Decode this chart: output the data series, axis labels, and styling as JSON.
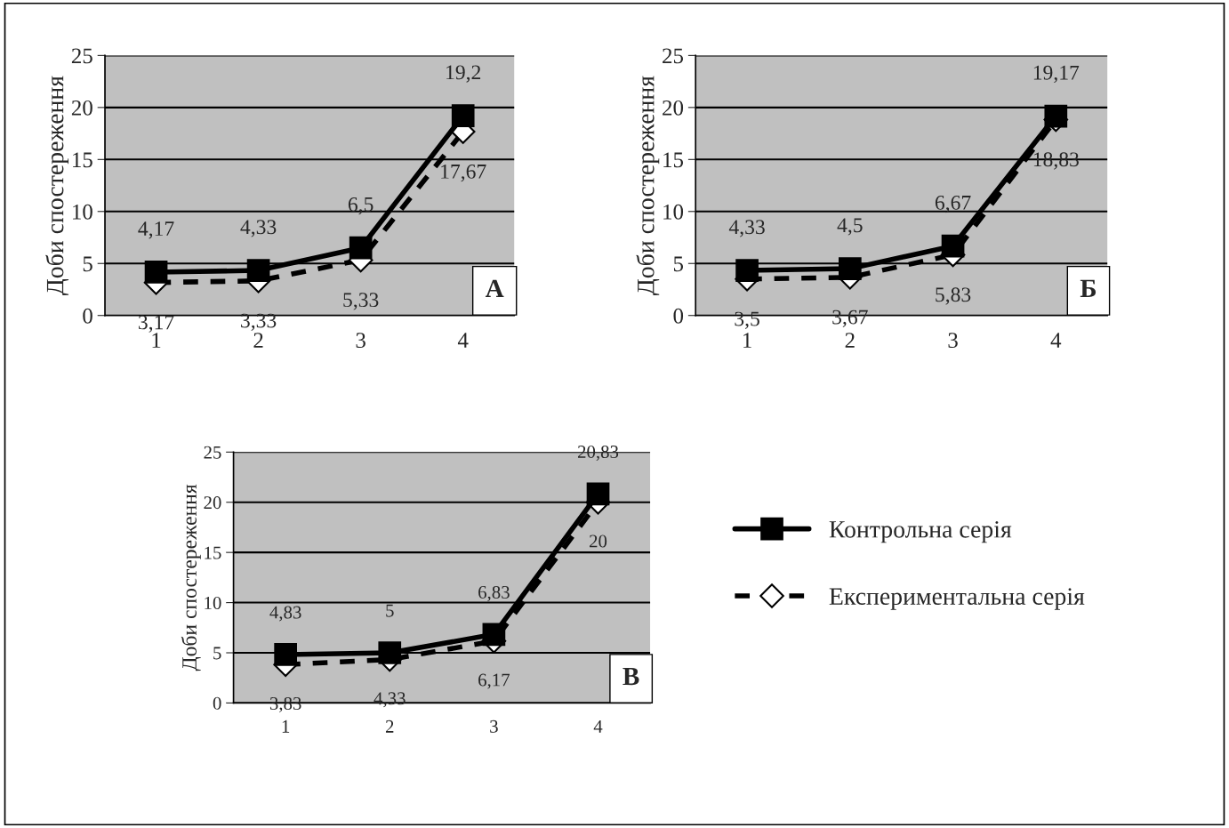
{
  "chart_data": [
    {
      "type": "line",
      "ylabel": "Доби спостереження",
      "categories": [
        "1",
        "2",
        "3",
        "4"
      ],
      "ylim": [
        0,
        25
      ],
      "yticks": [
        0,
        5,
        10,
        15,
        20,
        25
      ],
      "grid": "y",
      "legend": false,
      "annotations": [
        "А"
      ],
      "series": [
        {
          "color": "#000000",
          "marker": "square",
          "line_style": "solid",
          "values": [
            4.17,
            4.33,
            6.5,
            19.2
          ],
          "value_labels": [
            "4,17",
            "4,33",
            "6,5",
            "19,2"
          ]
        },
        {
          "color": "#000000",
          "marker": "diamond",
          "line_style": "dashed",
          "values": [
            3.17,
            3.33,
            5.33,
            17.67
          ],
          "value_labels": [
            "3,17",
            "3,33",
            "5,33",
            "17,67"
          ]
        }
      ]
    },
    {
      "type": "line",
      "ylabel": "Доби спостереження",
      "categories": [
        "1",
        "2",
        "3",
        "4"
      ],
      "ylim": [
        0,
        25
      ],
      "yticks": [
        0,
        5,
        10,
        15,
        20,
        25
      ],
      "grid": "y",
      "legend": false,
      "annotations": [
        "Б"
      ],
      "series": [
        {
          "color": "#000000",
          "marker": "square",
          "line_style": "solid",
          "values": [
            4.33,
            4.5,
            6.67,
            19.17
          ],
          "value_labels": [
            "4,33",
            "4,5",
            "6,67",
            "19,17"
          ]
        },
        {
          "color": "#000000",
          "marker": "diamond",
          "line_style": "dashed",
          "values": [
            3.5,
            3.67,
            5.83,
            18.83
          ],
          "value_labels": [
            "3,5",
            "3,67",
            "5,83",
            "18,83"
          ]
        }
      ]
    },
    {
      "type": "line",
      "ylabel": "Доби спостереження",
      "categories": [
        "1",
        "2",
        "3",
        "4"
      ],
      "ylim": [
        0,
        25
      ],
      "yticks": [
        0,
        5,
        10,
        15,
        20,
        25
      ],
      "grid": "y",
      "legend": "right",
      "annotations": [
        "В"
      ],
      "series": [
        {
          "name": "Контрольна серія",
          "color": "#000000",
          "marker": "square",
          "line_style": "solid",
          "values": [
            4.83,
            5,
            6.83,
            20.83
          ],
          "value_labels": [
            "4,83",
            "5",
            "6,83",
            "20,83"
          ]
        },
        {
          "name": "Експериментальна серія",
          "color": "#000000",
          "marker": "diamond",
          "line_style": "dashed",
          "values": [
            3.83,
            4.33,
            6.17,
            20
          ],
          "value_labels": [
            "3,83",
            "4,33",
            "6,17",
            "20"
          ]
        }
      ]
    }
  ]
}
